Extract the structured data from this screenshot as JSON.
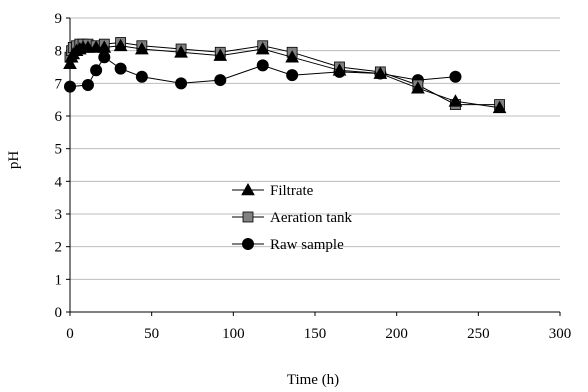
{
  "chart_data": {
    "type": "line",
    "title": "",
    "xlabel": "Time (h)",
    "ylabel": "pH",
    "xlim": [
      0,
      300
    ],
    "ylim": [
      0,
      9
    ],
    "xticks": [
      0,
      50,
      100,
      150,
      200,
      250,
      300
    ],
    "yticks": [
      0,
      1,
      2,
      3,
      4,
      5,
      6,
      7,
      8,
      9
    ],
    "grid": "horizontal",
    "legend_position": "center",
    "series": [
      {
        "name": "Filtrate",
        "marker": "triangle",
        "color": "#000000",
        "points": [
          [
            0,
            7.6
          ],
          [
            1,
            7.8
          ],
          [
            2,
            7.9
          ],
          [
            4,
            8.0
          ],
          [
            6,
            8.05
          ],
          [
            8,
            8.1
          ],
          [
            11,
            8.1
          ],
          [
            16,
            8.1
          ],
          [
            21,
            8.1
          ],
          [
            31,
            8.15
          ],
          [
            44,
            8.05
          ],
          [
            68,
            7.95
          ],
          [
            92,
            7.85
          ],
          [
            118,
            8.05
          ],
          [
            136,
            7.8
          ],
          [
            165,
            7.4
          ],
          [
            190,
            7.3
          ],
          [
            213,
            6.85
          ],
          [
            236,
            6.45
          ],
          [
            263,
            6.25
          ]
        ]
      },
      {
        "name": "Aeration tank",
        "marker": "square",
        "color": "#808080",
        "points": [
          [
            0,
            7.8
          ],
          [
            1,
            8.0
          ],
          [
            2,
            8.1
          ],
          [
            4,
            8.15
          ],
          [
            6,
            8.2
          ],
          [
            8,
            8.2
          ],
          [
            11,
            8.2
          ],
          [
            16,
            8.15
          ],
          [
            21,
            8.2
          ],
          [
            31,
            8.25
          ],
          [
            44,
            8.15
          ],
          [
            68,
            8.05
          ],
          [
            92,
            7.95
          ],
          [
            118,
            8.15
          ],
          [
            136,
            7.95
          ],
          [
            165,
            7.5
          ],
          [
            190,
            7.35
          ],
          [
            213,
            6.95
          ],
          [
            236,
            6.35
          ],
          [
            263,
            6.35
          ]
        ]
      },
      {
        "name": "Raw sample",
        "marker": "circle",
        "color": "#000000",
        "points": [
          [
            0,
            6.9
          ],
          [
            11,
            6.95
          ],
          [
            16,
            7.4
          ],
          [
            21,
            7.8
          ],
          [
            31,
            7.45
          ],
          [
            44,
            7.2
          ],
          [
            68,
            7.0
          ],
          [
            92,
            7.1
          ],
          [
            118,
            7.55
          ],
          [
            136,
            7.25
          ],
          [
            165,
            7.35
          ],
          [
            190,
            7.3
          ],
          [
            213,
            7.1
          ],
          [
            236,
            7.2
          ]
        ]
      }
    ]
  }
}
